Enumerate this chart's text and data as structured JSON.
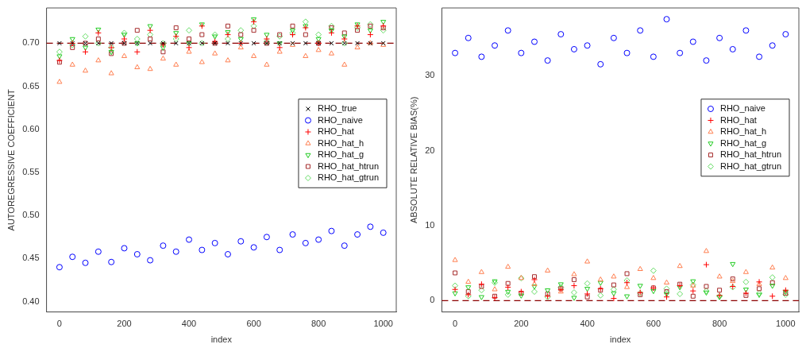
{
  "chart_data": [
    {
      "type": "scatter",
      "xlabel": "index",
      "ylabel": "AUTOREGRESSIVE COEFFICIENT",
      "xlim": [
        -40,
        1040
      ],
      "ylim": [
        0.388,
        0.741
      ],
      "xticks": [
        0,
        200,
        400,
        600,
        800,
        1000
      ],
      "yticks": [
        {
          "value": 0.4,
          "label": "0.40"
        },
        0.45,
        {
          "value": 0.5,
          "label": "0.50"
        },
        0.55,
        {
          "value": 0.6,
          "label": "0.60"
        },
        0.65,
        {
          "value": 0.7,
          "label": "0.70"
        }
      ],
      "grid": false,
      "legend": "right",
      "ref_lines": [
        {
          "axis": "y",
          "value": 0.7,
          "label": null,
          "color": "#8b0000",
          "line_style": "dashed"
        }
      ],
      "x": [
        0,
        40,
        80,
        120,
        160,
        200,
        240,
        280,
        320,
        360,
        400,
        440,
        480,
        520,
        560,
        600,
        640,
        680,
        720,
        760,
        800,
        840,
        880,
        920,
        960,
        1000
      ],
      "series": [
        {
          "name": "RHO_true",
          "color": "#000000",
          "marker": "x",
          "values": [
            0.7,
            0.7,
            0.7,
            0.7,
            0.7,
            0.7,
            0.7,
            0.7,
            0.7,
            0.7,
            0.7,
            0.7,
            0.7,
            0.7,
            0.7,
            0.7,
            0.7,
            0.7,
            0.7,
            0.7,
            0.7,
            0.7,
            0.7,
            0.7,
            0.7,
            0.7
          ]
        },
        {
          "name": "RHO_naive",
          "color": "#0000ff",
          "marker": "circle",
          "values": [
            0.44,
            0.452,
            0.445,
            0.458,
            0.446,
            0.462,
            0.455,
            0.448,
            0.465,
            0.458,
            0.472,
            0.46,
            0.468,
            0.455,
            0.47,
            0.463,
            0.475,
            0.46,
            0.478,
            0.468,
            0.472,
            0.482,
            0.465,
            0.478,
            0.487,
            0.48
          ]
        },
        {
          "name": "RHO_hat",
          "color": "#ff0000",
          "marker": "cross",
          "values": [
            0.68,
            0.7,
            0.69,
            0.712,
            0.695,
            0.705,
            0.69,
            0.715,
            0.698,
            0.708,
            0.695,
            0.72,
            0.702,
            0.71,
            0.7,
            0.725,
            0.705,
            0.695,
            0.71,
            0.718,
            0.7,
            0.712,
            0.705,
            0.72,
            0.71,
            0.72
          ]
        },
        {
          "name": "RHO_hat_h",
          "color": "#ff7f50",
          "marker": "triangle",
          "values": [
            0.655,
            0.675,
            0.668,
            0.68,
            0.665,
            0.685,
            0.672,
            0.67,
            0.682,
            0.675,
            0.69,
            0.678,
            0.688,
            0.68,
            0.695,
            0.685,
            0.675,
            0.69,
            0.698,
            0.685,
            0.692,
            0.688,
            0.675,
            0.695,
            0.7,
            0.698
          ]
        },
        {
          "name": "RHO_hat_g",
          "color": "#22cc22",
          "marker": "triangle_down",
          "values": [
            0.685,
            0.705,
            0.695,
            0.716,
            0.69,
            0.71,
            0.7,
            0.72,
            0.695,
            0.712,
            0.7,
            0.722,
            0.708,
            0.713,
            0.705,
            0.728,
            0.71,
            0.7,
            0.715,
            0.72,
            0.705,
            0.715,
            0.708,
            0.722,
            0.715,
            0.725
          ]
        },
        {
          "name": "RHO_hat_htrun",
          "color": "#a52a2a",
          "marker": "square",
          "values": [
            0.678,
            0.695,
            0.7,
            0.705,
            0.688,
            0.7,
            0.715,
            0.705,
            0.69,
            0.718,
            0.705,
            0.71,
            0.7,
            0.72,
            0.71,
            0.715,
            0.7,
            0.71,
            0.72,
            0.71,
            0.7,
            0.718,
            0.712,
            0.715,
            0.72,
            0.718
          ]
        },
        {
          "name": "RHO_hat_gtrun",
          "color": "#66dd66",
          "marker": "diamond",
          "values": [
            0.69,
            0.698,
            0.708,
            0.7,
            0.695,
            0.712,
            0.705,
            0.71,
            0.7,
            0.705,
            0.715,
            0.7,
            0.71,
            0.705,
            0.715,
            0.72,
            0.702,
            0.708,
            0.712,
            0.725,
            0.71,
            0.72,
            0.7,
            0.718,
            0.722,
            0.715
          ]
        }
      ]
    },
    {
      "type": "scatter",
      "xlabel": "index",
      "ylabel": "ABSOLUTE RELATIVE BIAS(%)",
      "xlim": [
        -40,
        1040
      ],
      "ylim": [
        -1.5,
        39
      ],
      "xticks": [
        0,
        200,
        400,
        600,
        800,
        1000
      ],
      "yticks": [
        0,
        10,
        20,
        30
      ],
      "grid": false,
      "legend": "right",
      "ref_lines": [
        {
          "axis": "y",
          "value": 0,
          "label": null,
          "color": "#8b0000",
          "line_style": "dashed"
        }
      ],
      "x": [
        0,
        40,
        80,
        120,
        160,
        200,
        240,
        280,
        320,
        360,
        400,
        440,
        480,
        520,
        560,
        600,
        640,
        680,
        720,
        760,
        800,
        840,
        880,
        920,
        960,
        1000
      ],
      "series": [
        {
          "name": "RHO_naive",
          "color": "#0000ff",
          "marker": "circle",
          "values": [
            33,
            35,
            32.5,
            34,
            36,
            33,
            34.5,
            32,
            35.5,
            33.5,
            34,
            31.5,
            35,
            33,
            36,
            32.5,
            37.5,
            33,
            34.5,
            32,
            35,
            33.5,
            36,
            32.5,
            34,
            35.5
          ]
        },
        {
          "name": "RHO_hat",
          "color": "#ff0000",
          "marker": "cross",
          "values": [
            1.5,
            0.8,
            2.2,
            0.4,
            1.8,
            1.2,
            2.8,
            0.6,
            1.5,
            2.0,
            0.9,
            1.6,
            0.3,
            2.4,
            1.1,
            1.7,
            0.5,
            2.0,
            1.3,
            4.8,
            0.7,
            1.9,
            1.0,
            2.5,
            0.6,
            1.4
          ]
        },
        {
          "name": "RHO_hat_h",
          "color": "#ff7f50",
          "marker": "triangle",
          "values": [
            5.4,
            2.5,
            3.8,
            1.5,
            4.5,
            3.0,
            2.2,
            4.0,
            1.2,
            3.5,
            5.2,
            2.8,
            3.2,
            1.8,
            4.2,
            3.0,
            2.4,
            4.6,
            2.0,
            6.6,
            3.2,
            2.6,
            3.8,
            2.2,
            4.4,
            3.0
          ]
        },
        {
          "name": "RHO_hat_g",
          "color": "#22cc22",
          "marker": "triangle_down",
          "values": [
            1.0,
            1.8,
            0.5,
            2.6,
            1.2,
            0.7,
            1.9,
            1.4,
            2.2,
            0.4,
            1.6,
            2.4,
            1.0,
            0.6,
            2.0,
            1.3,
            0.9,
            1.8,
            2.6,
            1.1,
            0.5,
            4.9,
            1.5,
            0.8,
            2.0,
            1.2
          ]
        },
        {
          "name": "RHO_hat_htrun",
          "color": "#a52a2a",
          "marker": "square",
          "values": [
            3.7,
            1.2,
            1.9,
            0.6,
            2.3,
            1.0,
            3.2,
            0.9,
            1.6,
            2.8,
            0.5,
            1.4,
            2.1,
            3.6,
            0.8,
            1.7,
            1.2,
            2.2,
            0.6,
            1.9,
            1.4,
            2.9,
            0.7,
            1.6,
            2.4,
            1.0
          ]
        },
        {
          "name": "RHO_hat_gtrun",
          "color": "#66dd66",
          "marker": "diamond",
          "values": [
            2.0,
            0.6,
            1.4,
            2.4,
            0.8,
            3.0,
            1.2,
            0.5,
            1.8,
            1.1,
            2.3,
            0.7,
            1.5,
            2.7,
            1.0,
            4.0,
            1.6,
            0.9,
            2.1,
            1.3,
            0.6,
            1.8,
            2.5,
            1.0,
            3.1,
            0.8
          ]
        }
      ]
    }
  ]
}
